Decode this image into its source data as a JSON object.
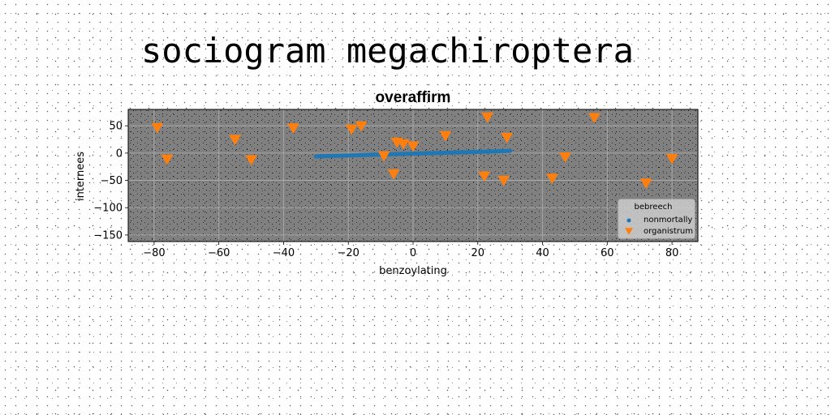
{
  "page_title": "sociogram megachiroptera",
  "chart_data": {
    "type": "scatter",
    "title": "overaffirm",
    "xlabel": "benzoylating",
    "ylabel": "internees",
    "xlim": [
      -88,
      88
    ],
    "ylim": [
      -162,
      80
    ],
    "x_ticks": [
      -80,
      -60,
      -40,
      -20,
      0,
      20,
      40,
      60,
      80
    ],
    "x_tick_labels": [
      "−80",
      "−60",
      "−40",
      "−20",
      "0",
      "20",
      "40",
      "60",
      "80"
    ],
    "y_ticks": [
      50,
      0,
      -50,
      -100,
      -150
    ],
    "y_tick_labels": [
      "50",
      "0",
      "−50",
      "−100",
      "−150"
    ],
    "grid": true,
    "legend": {
      "title": "bebreech",
      "position": "lower-right"
    },
    "series": [
      {
        "name": "nonmortally",
        "marker": "circle",
        "color": "#1f77b4",
        "x_range": [
          -30,
          30
        ],
        "y_range": [
          -6,
          4
        ],
        "num_points": 120
      },
      {
        "name": "organistrum",
        "marker": "triangle-down",
        "color": "#ff7f0e",
        "points": [
          [
            -79,
            47
          ],
          [
            -76,
            -11
          ],
          [
            -55,
            25
          ],
          [
            -50,
            -12
          ],
          [
            -37,
            46
          ],
          [
            -19,
            44
          ],
          [
            -16,
            50
          ],
          [
            -9,
            -5
          ],
          [
            -6,
            -38
          ],
          [
            -5,
            20
          ],
          [
            -3,
            17
          ],
          [
            0,
            13
          ],
          [
            10,
            32
          ],
          [
            22,
            -42
          ],
          [
            23,
            66
          ],
          [
            28,
            -50
          ],
          [
            29,
            29
          ],
          [
            43,
            -46
          ],
          [
            47,
            -7
          ],
          [
            56,
            65
          ],
          [
            72,
            -55
          ],
          [
            80,
            -10
          ]
        ]
      }
    ]
  }
}
